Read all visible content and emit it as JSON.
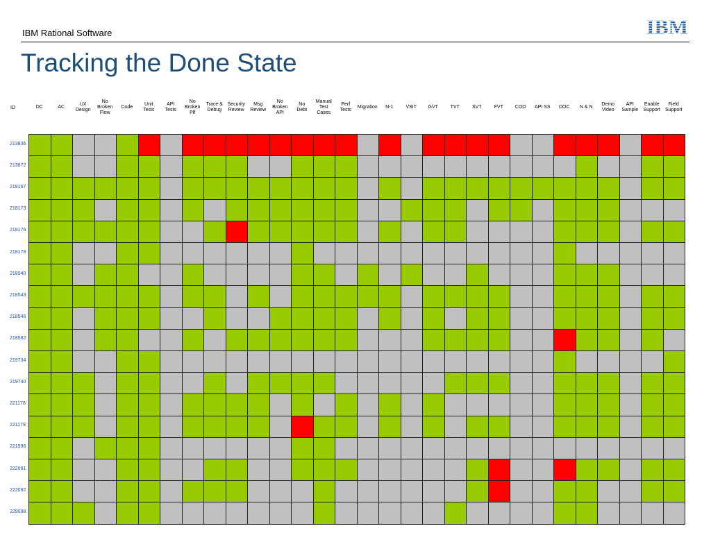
{
  "header": {
    "company": "IBM Rational Software",
    "logo_text": "IBM"
  },
  "title": "Tracking the Done State",
  "colors": {
    "green": "#99cc00",
    "gray": "#c0c0c0",
    "red": "#ff0000",
    "title": "#1f4e79"
  },
  "table": {
    "id_header": "ID",
    "columns": [
      [
        "DC"
      ],
      [
        "AC"
      ],
      [
        "UX",
        "Design"
      ],
      [
        "No",
        "Broken",
        "Flow"
      ],
      [
        "Code"
      ],
      [
        "Unit",
        "Tests"
      ],
      [
        "API",
        "Tests"
      ],
      [
        "No",
        "Broken",
        "Plf"
      ],
      [
        "Trace &",
        "Debug"
      ],
      [
        "Security",
        "Review"
      ],
      [
        "Msg",
        "Review"
      ],
      [
        "No",
        "Broken",
        "API"
      ],
      [
        "No",
        "Debt"
      ],
      [
        "Manual",
        "Test",
        "Cases"
      ],
      [
        "Perf",
        "Tests"
      ],
      [
        "Migration"
      ],
      [
        "N-1"
      ],
      [
        "VSIT"
      ],
      [
        "GVT"
      ],
      [
        "TVT"
      ],
      [
        "SVT"
      ],
      [
        "FVT"
      ],
      [
        "COO"
      ],
      [
        "API SS"
      ],
      [
        "DOC"
      ],
      [
        "N & N"
      ],
      [
        "Demo",
        "Video"
      ],
      [
        "API",
        "Sample"
      ],
      [
        "Enable",
        "Support"
      ],
      [
        "Field",
        "Support"
      ]
    ],
    "rows": [
      {
        "id": "213836",
        "states": "GGSSGRSRRRRRRRRSRSRRRRSSRRRSRR"
      },
      {
        "id": "213872",
        "states": "GGSSGGSGGGSSGGGSSSSSSSSSSGSSGG"
      },
      {
        "id": "218167",
        "states": "GGGGGGSGGGGGGGGSGSGGGGGGGGGSGG"
      },
      {
        "id": "218173",
        "states": "GGGSGGSGSGGGGGGSSGGGSGGSGGGSSS"
      },
      {
        "id": "218176",
        "states": "GGGGGGSSGRGGGGGSGSGGSSSSGGGSGG"
      },
      {
        "id": "218178",
        "states": "GGSSGGSSSSSSGSSSSSSSSSSSGSSSSS"
      },
      {
        "id": "218540",
        "states": "GGSGGSSGSSSSGGSGSGSSGSSSGGGSSS"
      },
      {
        "id": "218543",
        "states": "GGGGGGSGGSGSGGGGGSGGGGSSGGGSGG"
      },
      {
        "id": "218546",
        "states": "GGSGGGSSGSSGGGGSGSGSGGSSGGGSGG"
      },
      {
        "id": "218582",
        "states": "GGSGGSSGSGGGGGGSSSGGGGSSRGGSGS"
      },
      {
        "id": "219734",
        "states": "GGSSGGSSSSSSSSSSSSSSSSSSGSSSSG"
      },
      {
        "id": "219740",
        "states": "GGGSGGSSGSGGGGSSSSSGGGSSGGGSGG"
      },
      {
        "id": "221178",
        "states": "GGGSGGSGGGGSGSGSGSGSSSSSGGGSGG"
      },
      {
        "id": "221179",
        "states": "GGGSGGSGGGGSRGGSGSGSGGSSGGGSGG"
      },
      {
        "id": "221996",
        "states": "GGSGGGSSSSSSGGSSSSSSSSSSSSSSSS"
      },
      {
        "id": "222091",
        "states": "GGSSGGSSGGSSGGGSSSSSGRSSRGGSGG"
      },
      {
        "id": "222092",
        "states": "GGSSGGSGGGSSSGSSSSSSGRSSGGSSGG"
      },
      {
        "id": "229098",
        "states": "GGGSGGSSSSSSSGSSSSSGSSSSGGSSSS"
      }
    ]
  }
}
